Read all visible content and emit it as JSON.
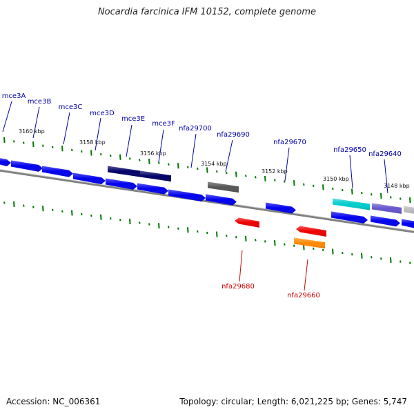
{
  "title": "Nocardia farcinica IFM 10152, complete genome",
  "footer": {
    "accession": "Accession: NC_006361",
    "summary": "Topology: circular; Length: 6,021,225 bp; Genes: 5,747"
  },
  "kbp_ticks": [
    "3160 kbp",
    "3158 kbp",
    "3156 kbp",
    "3154 kbp",
    "3152 kbp",
    "3150 kbp",
    "3148 kbp"
  ],
  "genes_forward": [
    {
      "label": "mce3A",
      "color": "#0000ee"
    },
    {
      "label": "mce3B",
      "color": "#0000ee"
    },
    {
      "label": "mce3C",
      "color": "#0000ee"
    },
    {
      "label": "mce3D",
      "color": "#0000ee"
    },
    {
      "label": "mce3E",
      "color": "#000066"
    },
    {
      "label": "mce3F",
      "color": "#000066"
    },
    {
      "label": "nfa29700",
      "color": "#0000ee"
    },
    {
      "label": "nfa29690",
      "color": "#0000ee"
    },
    {
      "label": "nfa29670",
      "color": "#0000ee"
    },
    {
      "label": "nfa29650",
      "color": "#00cccc"
    },
    {
      "label": "nfa29640",
      "color": "#6655cc"
    }
  ],
  "genes_reverse": [
    {
      "label": "nfa29680",
      "color": "#ee0000"
    },
    {
      "label": "nfa29660",
      "color": "#ff8800"
    }
  ],
  "colors": {
    "forward_label": "#0000aa",
    "reverse_label": "#cc0000",
    "backbone": "#808080",
    "tick": "#007700",
    "grey_gene": "#555555",
    "light_grey_gene": "#bbbbbb"
  }
}
